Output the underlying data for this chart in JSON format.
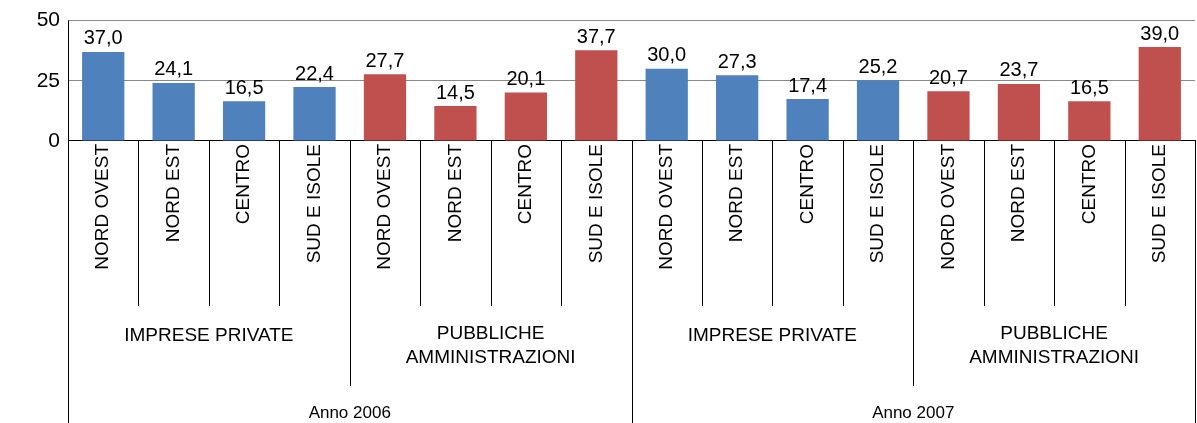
{
  "chart_data": {
    "type": "bar",
    "categories": [
      "NORD OVEST",
      "NORD EST",
      "CENTRO",
      "SUD E ISOLE",
      "NORD OVEST",
      "NORD EST",
      "CENTRO",
      "SUD E ISOLE",
      "NORD OVEST",
      "NORD EST",
      "CENTRO",
      "SUD E ISOLE",
      "NORD OVEST",
      "NORD EST",
      "CENTRO",
      "SUD E ISOLE"
    ],
    "values": [
      37.0,
      24.1,
      16.5,
      22.4,
      27.7,
      14.5,
      20.1,
      37.7,
      30.0,
      27.3,
      17.4,
      25.2,
      20.7,
      23.7,
      16.5,
      39.0
    ],
    "colors": [
      "#4f81bd",
      "#4f81bd",
      "#4f81bd",
      "#4f81bd",
      "#c0504d",
      "#c0504d",
      "#c0504d",
      "#c0504d",
      "#4f81bd",
      "#4f81bd",
      "#4f81bd",
      "#4f81bd",
      "#c0504d",
      "#c0504d",
      "#c0504d",
      "#c0504d"
    ],
    "value_labels": [
      "37,0",
      "24,1",
      "16,5",
      "22,4",
      "27,7",
      "14,5",
      "20,1",
      "37,7",
      "30,0",
      "27,3",
      "17,4",
      "25,2",
      "20,7",
      "23,7",
      "16,5",
      "39,0"
    ],
    "ylim": [
      0,
      50
    ],
    "yticks": [
      0,
      25,
      50
    ],
    "grid": "y",
    "legend": false,
    "annotations": [
      "IMPRESE PRIVATE",
      "PUBBLICHE AMMINISTRAZIONI",
      "IMPRESE PRIVATE",
      "PUBBLICHE AMMINISTRAZIONI",
      "Anno 2006",
      "Anno 2007"
    ]
  }
}
